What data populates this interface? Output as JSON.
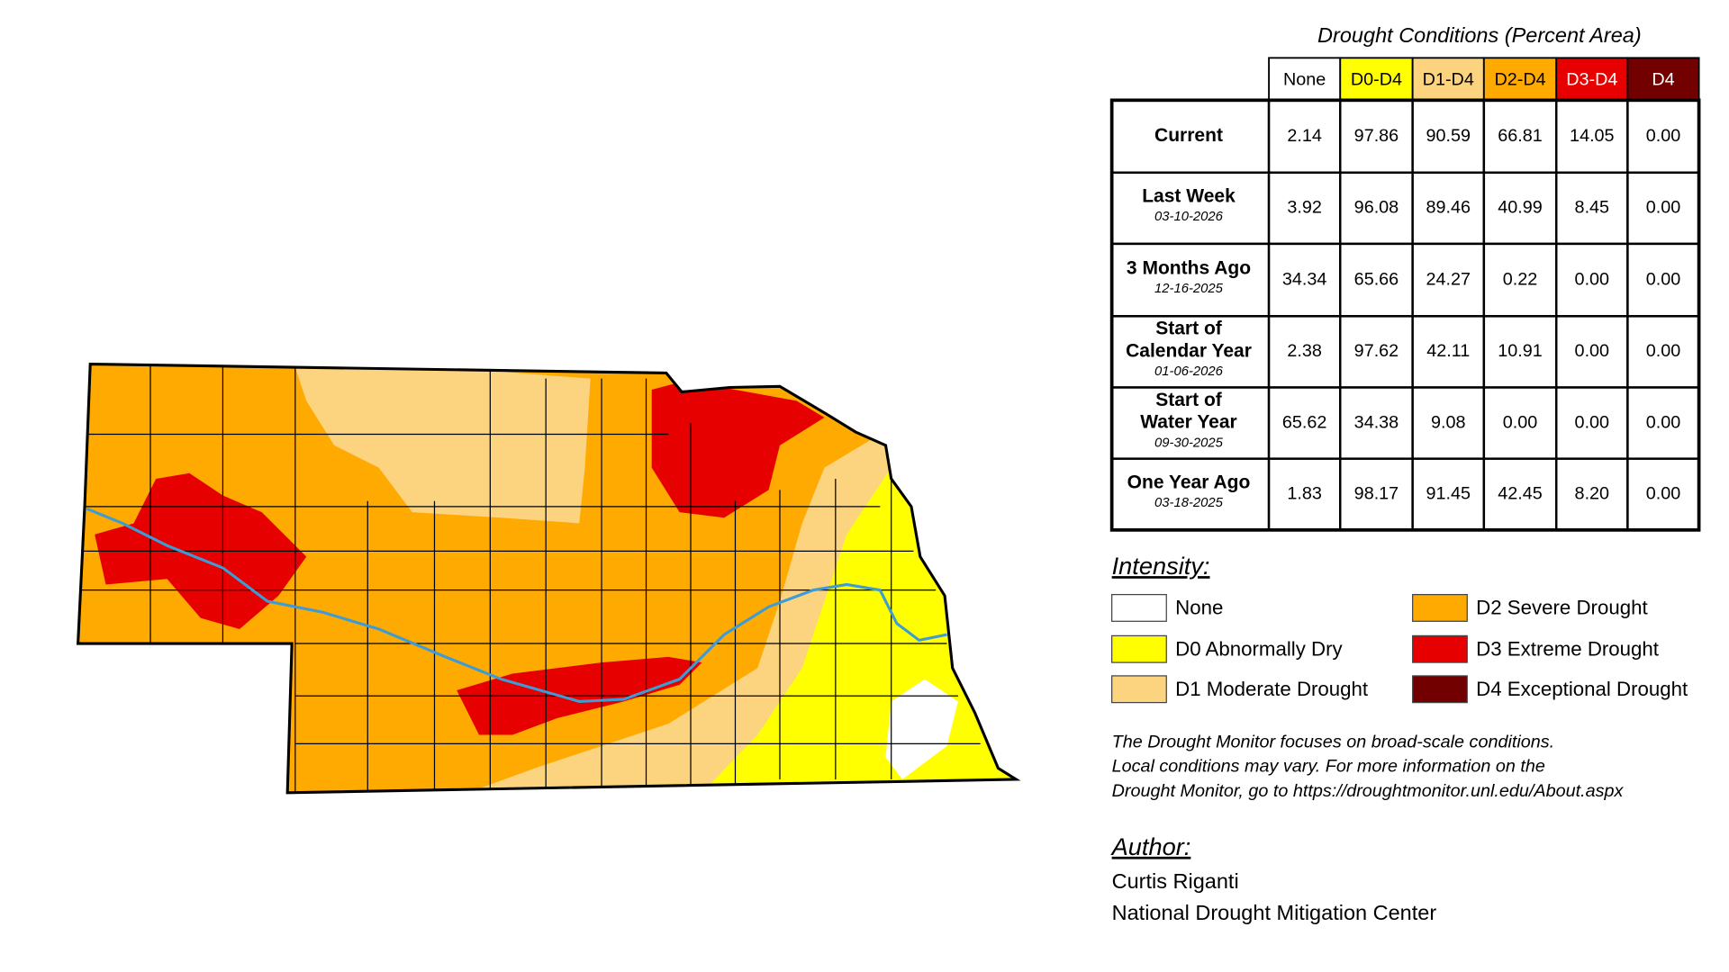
{
  "table": {
    "title": "Drought Conditions (Percent Area)",
    "columns": [
      "None",
      "D0-D4",
      "D1-D4",
      "D2-D4",
      "D3-D4",
      "D4"
    ],
    "column_colors": [
      "#ffffff",
      "#ffff00",
      "#fcd37f",
      "#ffaa00",
      "#e60000",
      "#730000"
    ],
    "rows": [
      {
        "label_lines": [
          "Current"
        ],
        "cells": [
          "2.14",
          "97.86",
          "90.59",
          "66.81",
          "14.05",
          "0.00"
        ]
      },
      {
        "label_lines": [
          "Last Week"
        ],
        "date": "03-10-2026",
        "cells": [
          "3.92",
          "96.08",
          "89.46",
          "40.99",
          "8.45",
          "0.00"
        ]
      },
      {
        "label_lines": [
          "3 Months Ago"
        ],
        "date": "12-16-2025",
        "cells": [
          "34.34",
          "65.66",
          "24.27",
          "0.22",
          "0.00",
          "0.00"
        ]
      },
      {
        "label_lines": [
          "Start of",
          "Calendar Year"
        ],
        "date": "01-06-2026",
        "cells": [
          "2.38",
          "97.62",
          "42.11",
          "10.91",
          "0.00",
          "0.00"
        ]
      },
      {
        "label_lines": [
          "Start of",
          "Water Year"
        ],
        "date": "09-30-2025",
        "cells": [
          "65.62",
          "34.38",
          "9.08",
          "0.00",
          "0.00",
          "0.00"
        ]
      },
      {
        "label_lines": [
          "One Year Ago"
        ],
        "date": "03-18-2025",
        "cells": [
          "1.83",
          "98.17",
          "91.45",
          "42.45",
          "8.20",
          "0.00"
        ]
      }
    ]
  },
  "legend": {
    "title": "Intensity:",
    "items": [
      {
        "label": "None",
        "color": "#ffffff"
      },
      {
        "label": "D0 Abnormally Dry",
        "color": "#ffff00"
      },
      {
        "label": "D1 Moderate Drought",
        "color": "#fcd37f"
      },
      {
        "label": "D2 Severe Drought",
        "color": "#ffaa00"
      },
      {
        "label": "D3 Extreme Drought",
        "color": "#e60000"
      },
      {
        "label": "D4 Exceptional Drought",
        "color": "#730000"
      }
    ]
  },
  "note": [
    "The Drought Monitor focuses on broad-scale conditions.",
    "Local conditions may vary. For more information on the",
    "Drought Monitor, go to https://droughtmonitor.unl.edu/About.aspx"
  ],
  "author": {
    "title": "Author:",
    "lines": [
      "Curtis Riganti",
      "National Drought Mitigation Center"
    ]
  }
}
